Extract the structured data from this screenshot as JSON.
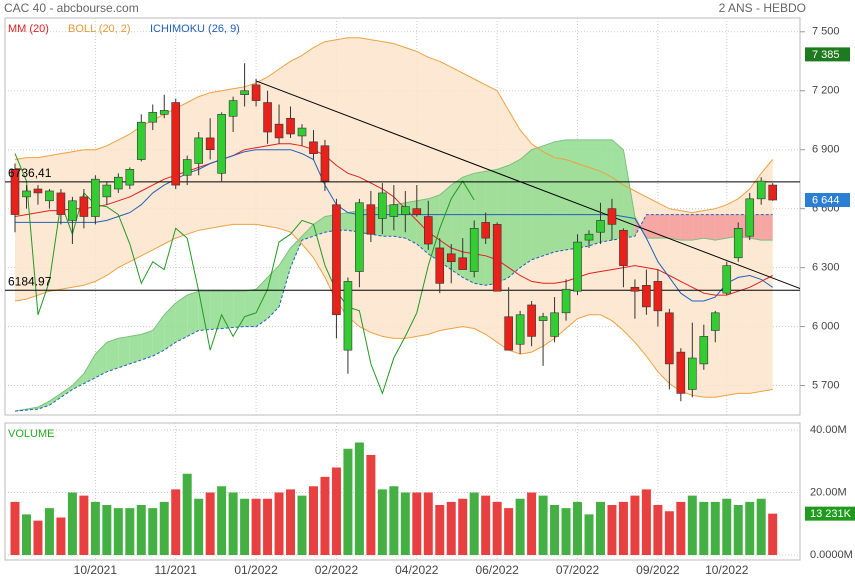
{
  "chart_data": [
    {
      "type": "candlestick",
      "title": "CAC 40 - abcbourse.com",
      "subtitle": "2 ANS - HEBDO",
      "categories": [
        null,
        null,
        null,
        null,
        null,
        null,
        null,
        "10/2021",
        null,
        null,
        null,
        null,
        null,
        null,
        "11/2021",
        null,
        null,
        null,
        null,
        null,
        null,
        "01/2022",
        null,
        null,
        null,
        null,
        null,
        null,
        "02/2022",
        null,
        null,
        null,
        null,
        null,
        null,
        "04/2022",
        null,
        null,
        null,
        null,
        null,
        null,
        "06/2022",
        null,
        null,
        null,
        null,
        null,
        null,
        "07/2022",
        null,
        null,
        null,
        null,
        null,
        null,
        "09/2022",
        null,
        null,
        null,
        null,
        null,
        "10/2022",
        null,
        null,
        null,
        null
      ],
      "open": [
        6800,
        6660,
        6700,
        6640,
        6680,
        6540,
        6660,
        6560,
        6660,
        6700,
        6720,
        6850,
        7040,
        7080,
        7140,
        6770,
        6830,
        6960,
        6780,
        7070,
        7180,
        7230,
        7140,
        7030,
        7060,
        6970,
        6940,
        6920,
        6620,
        5880,
        6280,
        6620,
        6550,
        6560,
        6570,
        6600,
        6560,
        6400,
        6370,
        6350,
        6280,
        6530,
        6520,
        6050,
        5910,
        6110,
        6030,
        5950,
        6070,
        6180,
        6440,
        6480,
        6600,
        6490,
        6200,
        6210,
        6230,
        6070,
        5870,
        5680,
        5810,
        5980,
        6170,
        6350,
        6460,
        6650,
        6720
      ],
      "high": [
        6830,
        6720,
        6720,
        6700,
        6700,
        6660,
        6700,
        6770,
        6740,
        6780,
        6810,
        7080,
        7130,
        7180,
        7160,
        6870,
        6990,
        7060,
        7090,
        7170,
        7340,
        7260,
        7200,
        7130,
        7120,
        7030,
        7000,
        6950,
        6650,
        6250,
        6650,
        6690,
        6730,
        6720,
        6690,
        6720,
        6640,
        6450,
        6420,
        6450,
        6540,
        6580,
        6530,
        6200,
        6080,
        6130,
        6070,
        6150,
        6240,
        6470,
        6490,
        6630,
        6650,
        6500,
        6240,
        6290,
        6290,
        6090,
        5890,
        6020,
        6010,
        6080,
        6330,
        6530,
        6680,
        6760,
        6730
      ],
      "low": [
        6480,
        6600,
        6620,
        6600,
        6520,
        6420,
        6500,
        6520,
        6620,
        6680,
        6700,
        6840,
        7000,
        7060,
        6700,
        6720,
        6770,
        6850,
        6740,
        6990,
        7120,
        7120,
        6930,
        6930,
        6960,
        6920,
        6850,
        6690,
        5940,
        5760,
        6200,
        6430,
        6470,
        6490,
        6480,
        6560,
        6390,
        6170,
        6220,
        6290,
        6250,
        6420,
        6180,
        5880,
        5860,
        5900,
        5800,
        5920,
        6030,
        6160,
        6400,
        6420,
        6440,
        6200,
        6040,
        6060,
        6000,
        5680,
        5620,
        5640,
        5780,
        5920,
        6160,
        6330,
        6440,
        6620,
        6640
      ],
      "close": [
        6570,
        6690,
        6680,
        6690,
        6570,
        6640,
        6560,
        6750,
        6720,
        6760,
        6800,
        7040,
        7090,
        7100,
        6720,
        6850,
        6960,
        6900,
        7080,
        7150,
        7200,
        7150,
        6990,
        6960,
        6980,
        7010,
        6880,
        6740,
        6060,
        6230,
        6630,
        6470,
        6680,
        6620,
        6610,
        6570,
        6420,
        6220,
        6330,
        6290,
        6500,
        6450,
        6180,
        5880,
        6060,
        5950,
        6050,
        6070,
        6190,
        6430,
        6470,
        6540,
        6520,
        6310,
        6180,
        6100,
        6080,
        5810,
        5660,
        5840,
        5950,
        6070,
        6310,
        6500,
        6650,
        6740,
        6644
      ],
      "up_color": "#33cc33",
      "down_color": "#e8211b",
      "ylim": [
        5550,
        7560
      ],
      "yticks": [
        {
          "value": 7500,
          "label": "7 500"
        },
        {
          "value": 7200,
          "label": "7 200"
        },
        {
          "value": 6900,
          "label": "6 900"
        },
        {
          "value": 6600,
          "label": "6 600"
        },
        {
          "value": 6300,
          "label": "6 300"
        },
        {
          "value": 6000,
          "label": "6 000"
        },
        {
          "value": 5700,
          "label": "5 700"
        }
      ],
      "grid": true,
      "mm": {
        "name": "MM (20)",
        "color": "#e02020",
        "values": [
          6560,
          6570,
          6580,
          6590,
          6590,
          6600,
          6600,
          6610,
          6620,
          6640,
          6660,
          6690,
          6720,
          6750,
          6770,
          6790,
          6810,
          6830,
          6850,
          6870,
          6900,
          6910,
          6920,
          6930,
          6930,
          6920,
          6900,
          6870,
          6820,
          6780,
          6760,
          6730,
          6700,
          6660,
          6600,
          6540,
          6480,
          6440,
          6400,
          6380,
          6370,
          6360,
          6340,
          6300,
          6260,
          6230,
          6220,
          6220,
          6230,
          6250,
          6270,
          6280,
          6290,
          6300,
          6310,
          6300,
          6290,
          6260,
          6230,
          6200,
          6170,
          6160,
          6160,
          6180,
          6200,
          6230,
          6260
        ]
      },
      "boll": {
        "name": "BOLL (20, 2)",
        "color": "#f0a040",
        "fill": "#fde3c8",
        "upper": [
          6850,
          6860,
          6860,
          6870,
          6880,
          6890,
          6900,
          6900,
          6920,
          6950,
          6980,
          7020,
          7050,
          7080,
          7110,
          7140,
          7170,
          7190,
          7200,
          7210,
          7220,
          7240,
          7270,
          7310,
          7350,
          7380,
          7420,
          7450,
          7460,
          7470,
          7470,
          7460,
          7450,
          7440,
          7420,
          7400,
          7370,
          7350,
          7320,
          7290,
          7260,
          7230,
          7200,
          7100,
          7000,
          6930,
          6890,
          6860,
          6850,
          6830,
          6810,
          6790,
          6760,
          6720,
          6690,
          6660,
          6630,
          6600,
          6590,
          6580,
          6590,
          6600,
          6620,
          6650,
          6700,
          6780,
          6850
        ],
        "lower": [
          6130,
          6140,
          6160,
          6180,
          6190,
          6200,
          6210,
          6230,
          6260,
          6300,
          6330,
          6360,
          6390,
          6420,
          6450,
          6470,
          6490,
          6500,
          6510,
          6520,
          6520,
          6520,
          6510,
          6500,
          6480,
          6420,
          6350,
          6250,
          6130,
          6050,
          6000,
          5970,
          5950,
          5940,
          5940,
          5950,
          5960,
          5980,
          5990,
          6000,
          5990,
          5960,
          5920,
          5880,
          5860,
          5870,
          5900,
          5940,
          5990,
          6040,
          6060,
          6060,
          6030,
          5980,
          5920,
          5850,
          5770,
          5710,
          5670,
          5650,
          5640,
          5640,
          5650,
          5660,
          5660,
          5670,
          5680
        ]
      },
      "ichimoku": {
        "name": "ICHIMOKU (26, 9)",
        "color": "#2060c0",
        "chikou_color": "#229922",
        "bull_fill": "#8fdc8f",
        "bear_fill": "#f59a9a",
        "kijun": [
          6530,
          6530,
          6530,
          6530,
          6530,
          6530,
          6530,
          6530,
          6540,
          6560,
          6580,
          6620,
          6680,
          6720,
          6750,
          6780,
          6800,
          6830,
          6850,
          6870,
          6890,
          6900,
          6900,
          6900,
          6900,
          6880,
          6850,
          6720,
          6620,
          6580,
          6570,
          6570,
          6570,
          6570,
          6570,
          6570,
          6570,
          6570,
          6570,
          6570,
          6570,
          6570,
          6570,
          6570,
          6570,
          6570,
          6570,
          6570,
          6570,
          6570,
          6570,
          6570,
          6570,
          6560,
          6550,
          6450,
          6330,
          6250,
          6170,
          6130,
          6130,
          6150,
          6220,
          6250,
          6260,
          6240,
          6200
        ],
        "chikou": [
          6880,
          6740,
          6060,
          6230,
          6630,
          6470,
          6680,
          6620,
          6610,
          6570,
          6420,
          6220,
          6330,
          6290,
          6500,
          6450,
          6180,
          5880,
          6060,
          5950,
          6050,
          6070,
          6190,
          6430,
          6470,
          6540,
          6520,
          6310,
          6180,
          6100,
          6080,
          5810,
          5660,
          5840,
          5950,
          6070,
          6310,
          6500,
          6650,
          6740,
          6644,
          null,
          null,
          null,
          null,
          null,
          null,
          null,
          null,
          null,
          null,
          null,
          null,
          null,
          null,
          null,
          null,
          null,
          null,
          null,
          null,
          null,
          null,
          null,
          null,
          null,
          null
        ],
        "span_a": [
          5570,
          5580,
          5590,
          5620,
          5660,
          5700,
          5760,
          5860,
          5920,
          5940,
          5950,
          5960,
          5980,
          6060,
          6120,
          6160,
          6180,
          6180,
          6180,
          6180,
          6180,
          6190,
          6250,
          6310,
          6400,
          6460,
          6520,
          6560,
          6570,
          6580,
          6590,
          6600,
          6610,
          6620,
          6630,
          6640,
          6650,
          6670,
          6720,
          6760,
          6780,
          6790,
          6800,
          6820,
          6850,
          6900,
          6920,
          6940,
          6950,
          6950,
          6950,
          6950,
          6950,
          6900,
          6560,
          6450,
          6450,
          6450,
          6440,
          6440,
          6450,
          6440,
          6450,
          6460,
          6450,
          6440,
          6440
        ],
        "span_b": [
          5570,
          5575,
          5580,
          5600,
          5640,
          5680,
          5710,
          5740,
          5770,
          5790,
          5810,
          5830,
          5850,
          5880,
          5920,
          5950,
          5980,
          5985,
          5990,
          5995,
          6000,
          6000,
          6040,
          6100,
          6300,
          6440,
          6460,
          6480,
          6490,
          6490,
          6480,
          6470,
          6460,
          6460,
          6450,
          6420,
          6370,
          6330,
          6290,
          6250,
          6220,
          6210,
          6220,
          6250,
          6300,
          6340,
          6360,
          6380,
          6390,
          6400,
          6410,
          6430,
          6440,
          6450,
          6460,
          6570,
          6570,
          6570,
          6570,
          6570,
          6570,
          6570,
          6570,
          6570,
          6570,
          6570,
          6570
        ]
      },
      "hlines": [
        {
          "value": 6736.41,
          "label": "6736,41"
        },
        {
          "value": 6184.97,
          "label": "6184.97"
        }
      ],
      "trendline": {
        "x": [
          21,
          69
        ],
        "values": [
          7250,
          6180
        ]
      },
      "price_labels": [
        {
          "value": 7385,
          "label": "7 385",
          "color": "#1f7a1f"
        },
        {
          "value": 6644,
          "label": "6 644",
          "color": "#2a7fd4"
        }
      ]
    },
    {
      "type": "volume",
      "title": "VOLUME",
      "values": [
        17,
        13,
        11,
        15,
        12,
        20,
        19,
        17,
        16,
        15,
        15,
        16,
        15,
        17,
        21,
        26,
        18,
        20,
        22,
        20,
        18,
        18,
        18,
        20,
        21,
        19,
        22,
        25,
        28,
        34,
        36,
        32,
        21,
        22,
        20,
        20,
        20,
        16,
        17,
        18,
        20,
        19,
        17,
        15,
        18,
        20,
        19,
        16,
        15,
        17,
        13,
        17,
        16,
        17,
        19,
        21,
        16,
        14,
        17,
        19,
        17,
        17,
        18,
        16,
        17,
        18,
        13.231
      ],
      "up_color": "#44b044",
      "down_color": "#e84040",
      "ylim": [
        0,
        40
      ],
      "yticks": [
        {
          "value": 40,
          "label": "40.00M"
        },
        {
          "value": 20,
          "label": "20.00M"
        },
        {
          "value": 0,
          "label": "0.0000M"
        }
      ],
      "last_label": {
        "value": 13.231,
        "label": "13 231K",
        "color": "#1f9a1f"
      }
    }
  ]
}
